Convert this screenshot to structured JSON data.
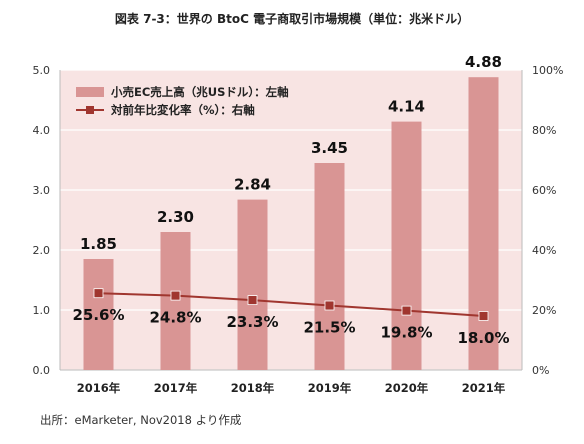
{
  "title": "図表 7-3：世界の BtoC 電子商取引市場規模（単位：兆米ドル）",
  "source": "出所：eMarketer, Nov2018 より作成",
  "chart_data": {
    "type": "bar",
    "categories": [
      "2016年",
      "2017年",
      "2018年",
      "2019年",
      "2020年",
      "2021年"
    ],
    "series": [
      {
        "name": "小売EC売上高（兆USドル）：左軸",
        "type": "bar",
        "axis": "left",
        "values": [
          1.85,
          2.3,
          2.84,
          3.45,
          4.14,
          4.88
        ],
        "labels": [
          "1.85",
          "2.30",
          "2.84",
          "3.45",
          "4.14",
          "4.88"
        ],
        "color": "#d99594"
      },
      {
        "name": "対前年比変化率（%）：右軸",
        "type": "line",
        "axis": "right",
        "values": [
          25.6,
          24.8,
          23.3,
          21.5,
          19.8,
          18.0
        ],
        "labels": [
          "25.6%",
          "24.8%",
          "23.3%",
          "21.5%",
          "19.8%",
          "18.0%"
        ],
        "color": "#a0362f"
      }
    ],
    "y_left": {
      "min": 0,
      "max": 5,
      "ticks": [
        "0.0",
        "1.0",
        "2.0",
        "3.0",
        "4.0",
        "5.0"
      ]
    },
    "y_right": {
      "min": 0,
      "max": 100,
      "ticks": [
        "0%",
        "20%",
        "40%",
        "60%",
        "80%",
        "100%"
      ]
    },
    "xlabel": "",
    "ylabel": "",
    "grid": true,
    "legend": "top-left",
    "plot_background": "#f8e4e3"
  }
}
